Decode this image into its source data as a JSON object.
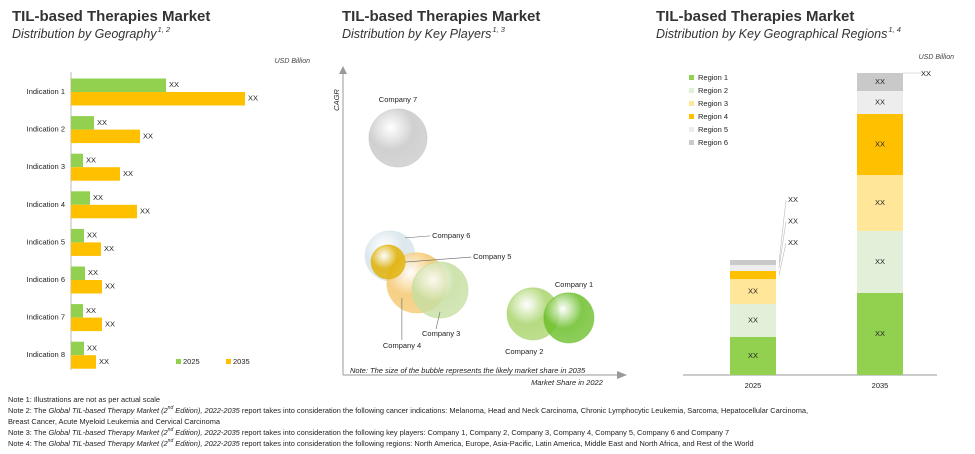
{
  "chart_data": [
    {
      "type": "hbar",
      "title": "TIL-based Therapies Market",
      "subtitle": "Distribution by Geography",
      "subtitle_sup": "1, 2",
      "unit": "USD Billion",
      "categories": [
        "Indication 1",
        "Indication 2",
        "Indication 3",
        "Indication 4",
        "Indication 5",
        "Indication 6",
        "Indication 7",
        "Indication 8"
      ],
      "series": [
        {
          "name": "2025",
          "color": "#92d050",
          "values": [
            95,
            23,
            12,
            19,
            13,
            14,
            12,
            13
          ],
          "value_labels": [
            "XX",
            "XX",
            "XX",
            "XX",
            "XX",
            "XX",
            "XX",
            "XX"
          ]
        },
        {
          "name": "2035",
          "color": "#ffc000",
          "values": [
            174,
            69,
            49,
            66,
            30,
            31,
            31,
            25
          ],
          "value_labels": [
            "XX",
            "XX",
            "XX",
            "XX",
            "XX",
            "XX",
            "XX",
            "XX"
          ]
        }
      ]
    },
    {
      "type": "bubble",
      "title": "TIL-based Therapies Market",
      "subtitle": "Distribution by Key Players",
      "subtitle_sup": "1, 3",
      "xlabel": "Market Share in 2022",
      "ylabel": "CAGR",
      "note": "Note: The size of the bubble represents the likely market share in 2035",
      "xlim": [
        0,
        100
      ],
      "ylim": [
        0,
        100
      ],
      "points": [
        {
          "label": "Company 7",
          "x": 19.5,
          "y": 77.2,
          "size": 29,
          "color": "#c8c8c8"
        },
        {
          "label": "Company 6",
          "x": 16.7,
          "y": 38.8,
          "size": 25,
          "color": "#d6e4ea"
        },
        {
          "label": "Company 4",
          "x": 26.2,
          "y": 30.0,
          "size": 30,
          "color": "#f5c870"
        },
        {
          "label": "Company 3",
          "x": 34.4,
          "y": 27.7,
          "size": 28,
          "color": "#c6dea0"
        },
        {
          "label": "Company 5",
          "x": 16.0,
          "y": 36.8,
          "size": 17,
          "color": "#e0b000"
        },
        {
          "label": "Company 2",
          "x": 67.4,
          "y": 19.9,
          "size": 26,
          "color": "#a9d46c"
        },
        {
          "label": "Company 1",
          "x": 80.1,
          "y": 18.6,
          "size": 25,
          "color": "#6cbf2a"
        }
      ]
    },
    {
      "type": "stacked_bar",
      "title": "TIL-based Therapies Market",
      "subtitle": "Distribution by Key Geographical Regions",
      "subtitle_sup": "1, 4",
      "unit": "USD Billion",
      "categories": [
        "2025",
        "2035"
      ],
      "series": [
        {
          "name": "Region 1",
          "color": "#92d050",
          "values": [
            38,
            82
          ],
          "value_labels": [
            "XX",
            "XX"
          ]
        },
        {
          "name": "Region 2",
          "color": "#e2f0d9",
          "values": [
            33,
            62
          ],
          "value_labels": [
            "XX",
            "XX"
          ]
        },
        {
          "name": "Region 3",
          "color": "#ffe699",
          "values": [
            25,
            56
          ],
          "value_labels": [
            "XX",
            "XX"
          ]
        },
        {
          "name": "Region 4",
          "color": "#ffc000",
          "values": [
            8,
            61
          ],
          "value_labels": [
            "XX",
            "XX"
          ]
        },
        {
          "name": "Region 5",
          "color": "#ededed",
          "values": [
            6,
            23
          ],
          "value_labels": [
            "XX",
            "XX"
          ]
        },
        {
          "name": "Region 6",
          "color": "#c9c9c9",
          "values": [
            5,
            18
          ],
          "value_labels": [
            "XX",
            "XX"
          ]
        }
      ],
      "annotation": "XX"
    }
  ],
  "notes": [
    [
      "Note 1: Illustrations are not as per actual scale"
    ],
    [
      "Note 2: The ",
      "Global TIL-based Therapy Market (2",
      "nd",
      " Edition), 2022-2035",
      " report takes into consideration the following cancer indications: Melanoma, Head and Neck Carcinoma, Chronic Lymphocytic Leukemia, Sarcoma, Hepatocellular Carcinoma,"
    ],
    [
      "Breast Cancer, Acute Myeloid Leukemia and Cervical Carcinoma"
    ],
    [
      "Note 3: The ",
      "Global TIL-based Therapy Market (2",
      "nd",
      " Edition), 2022-2035",
      " report takes into consideration the following key players: Company 1, Company 2, Company 3, Company 4, Company 5, Company 6 and Company 7"
    ],
    [
      "Note 4: The ",
      "Global TIL-based Therapy Market (2",
      "nd",
      " Edition), 2022-2035",
      " report takes into consideration the following regions: North America, Europe, Asia-Pacific, Latin America, Middle East and North Africa, and Rest of the World"
    ]
  ]
}
